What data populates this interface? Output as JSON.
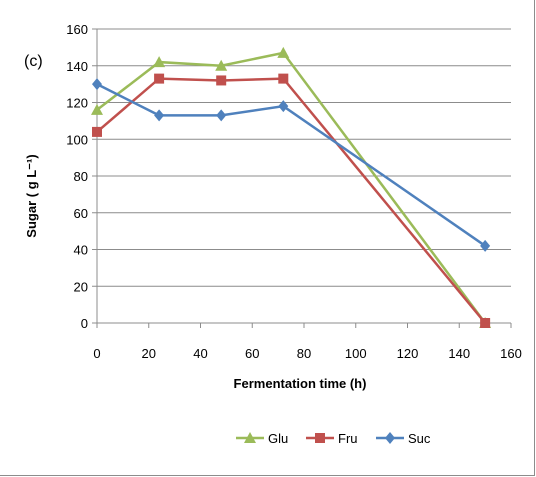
{
  "panel_label": "(c)",
  "chart_data": {
    "type": "line",
    "title": "",
    "xlabel": "Fermentation time (h)",
    "ylabel": "Sugar ( g L⁻¹)",
    "xlim": [
      0,
      160
    ],
    "ylim": [
      0,
      160
    ],
    "xticks": [
      0,
      20,
      40,
      60,
      80,
      100,
      120,
      140,
      160
    ],
    "yticks": [
      0,
      20,
      40,
      60,
      80,
      100,
      120,
      140,
      160
    ],
    "grid": "horizontal",
    "legend_position": "bottom",
    "series": [
      {
        "name": "Glu",
        "color": "#9bbb59",
        "marker": "triangle",
        "x": [
          0,
          24,
          48,
          72,
          150
        ],
        "y": [
          116,
          142,
          140,
          147,
          0
        ]
      },
      {
        "name": "Fru",
        "color": "#c0504d",
        "marker": "square",
        "x": [
          0,
          24,
          48,
          72,
          150
        ],
        "y": [
          104,
          133,
          132,
          133,
          0
        ]
      },
      {
        "name": "Suc",
        "color": "#4f81bd",
        "marker": "diamond",
        "x": [
          0,
          24,
          48,
          72,
          150
        ],
        "y": [
          130,
          113,
          113,
          118,
          42
        ]
      }
    ]
  }
}
